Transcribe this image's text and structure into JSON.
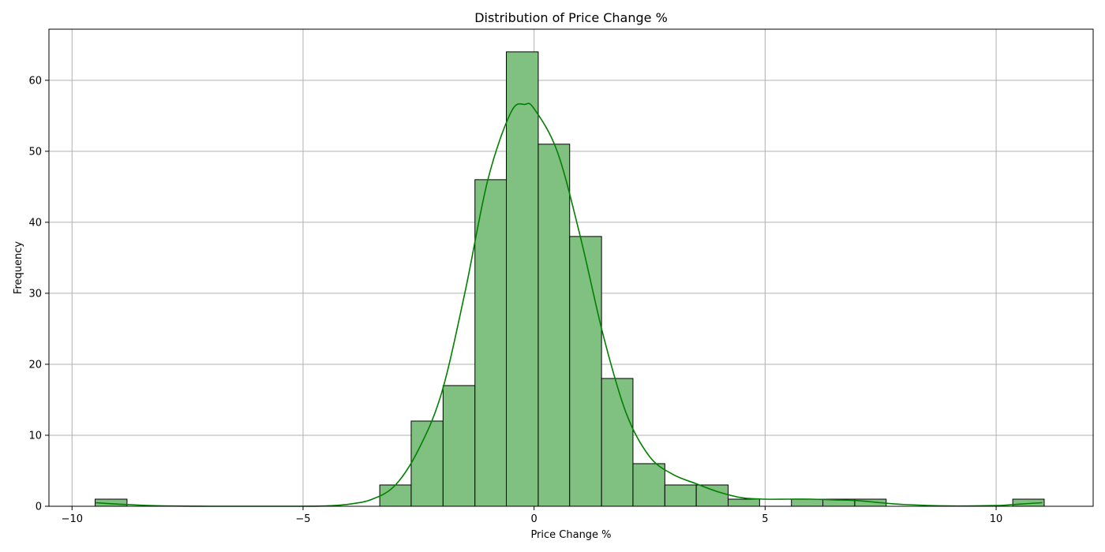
{
  "chart_data": {
    "type": "bar",
    "title": "Distribution of Price Change %",
    "xlabel": "Price Change %",
    "ylabel": "Frequency",
    "xlim": [
      -10.5,
      12.1
    ],
    "ylim": [
      0,
      67.2
    ],
    "xticks": [
      -10,
      -5,
      0,
      5,
      10
    ],
    "xtick_labels": [
      "−10",
      "−5",
      "0",
      "5",
      "10"
    ],
    "yticks": [
      0,
      10,
      20,
      30,
      40,
      50,
      60
    ],
    "grid": true,
    "bins": [
      {
        "x0": -9.5,
        "x1": -8.81,
        "count": 1
      },
      {
        "x0": -3.34,
        "x1": -2.66,
        "count": 3
      },
      {
        "x0": -2.66,
        "x1": -1.97,
        "count": 12
      },
      {
        "x0": -1.97,
        "x1": -1.28,
        "count": 17
      },
      {
        "x0": -1.28,
        "x1": -0.6,
        "count": 46
      },
      {
        "x0": -0.6,
        "x1": 0.09,
        "count": 64
      },
      {
        "x0": 0.09,
        "x1": 0.77,
        "count": 51
      },
      {
        "x0": 0.77,
        "x1": 1.46,
        "count": 38
      },
      {
        "x0": 1.46,
        "x1": 2.14,
        "count": 18
      },
      {
        "x0": 2.14,
        "x1": 2.83,
        "count": 6
      },
      {
        "x0": 2.83,
        "x1": 3.51,
        "count": 3
      },
      {
        "x0": 3.51,
        "x1": 4.2,
        "count": 3
      },
      {
        "x0": 4.2,
        "x1": 4.88,
        "count": 1
      },
      {
        "x0": 5.57,
        "x1": 6.25,
        "count": 1
      },
      {
        "x0": 6.25,
        "x1": 6.94,
        "count": 1
      },
      {
        "x0": 6.94,
        "x1": 7.62,
        "count": 1
      },
      {
        "x0": 10.36,
        "x1": 11.04,
        "count": 1
      }
    ],
    "kde": {
      "x": [
        -9.5,
        -9.0,
        -8.5,
        -8.0,
        -7.0,
        -6.0,
        -5.0,
        -4.5,
        -4.0,
        -3.5,
        -3.0,
        -2.5,
        -2.0,
        -1.5,
        -1.0,
        -0.5,
        -0.2,
        0.0,
        0.5,
        1.0,
        1.5,
        2.0,
        2.5,
        3.0,
        3.5,
        4.0,
        4.5,
        5.0,
        5.5,
        6.0,
        6.5,
        7.0,
        7.5,
        8.0,
        9.0,
        10.0,
        10.5,
        11.0
      ],
      "y": [
        0.5,
        0.3,
        0.15,
        0.05,
        0.0,
        0.0,
        0.0,
        0.05,
        0.3,
        1.0,
        3.0,
        8.0,
        16.0,
        30.0,
        46.0,
        55.5,
        56.6,
        56.0,
        50.0,
        38.0,
        24.0,
        13.0,
        7.0,
        4.5,
        3.2,
        2.0,
        1.2,
        1.0,
        1.0,
        1.0,
        0.9,
        0.8,
        0.5,
        0.25,
        0.05,
        0.1,
        0.3,
        0.5
      ]
    },
    "colors": {
      "bar_fill": "#80c080",
      "bar_edge": "#000000",
      "kde_line": "#008000",
      "grid": "#b0b0b0"
    }
  }
}
